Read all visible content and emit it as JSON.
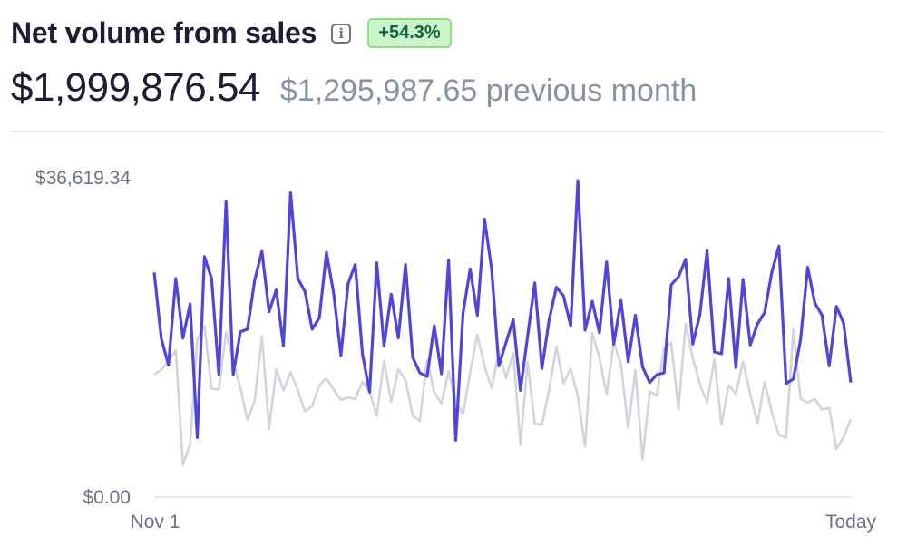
{
  "header": {
    "title": "Net volume from sales",
    "info_icon": "info-icon",
    "change_badge": "+54.3%"
  },
  "summary": {
    "current_value": "$1,999,876.54",
    "previous_text": "$1,295,987.65 previous month"
  },
  "colors": {
    "current": "#5145d9",
    "previous": "#d1d5db",
    "badge_bg": "#cbf4c9",
    "badge_text": "#0e6245"
  },
  "chart_data": {
    "type": "line",
    "title": "",
    "xlabel": "",
    "ylabel": "",
    "ylim": [
      0,
      36619.34
    ],
    "y_tick_labels": [
      "$36,619.34",
      "$0.00"
    ],
    "x_tick_labels": [
      "Nov 1",
      "Today"
    ],
    "grid": false,
    "legend": "none",
    "series": [
      {
        "key": "current",
        "values": [
          25700,
          18100,
          15100,
          25000,
          18200,
          22100,
          6800,
          27500,
          25000,
          14000,
          33800,
          14000,
          18900,
          19200,
          24800,
          28100,
          21200,
          23700,
          17300,
          34800,
          25000,
          23500,
          19200,
          20500,
          28000,
          23300,
          16200,
          24400,
          26600,
          16400,
          12000,
          26800,
          17300,
          23200,
          18200,
          26600,
          16000,
          14200,
          13800,
          19600,
          14100,
          27100,
          6500,
          21000,
          26100,
          20800,
          31800,
          26000,
          15000,
          17700,
          20300,
          12200,
          18400,
          24500,
          14700,
          20300,
          24000,
          23000,
          19600,
          36200,
          19100,
          22400,
          18800,
          26900,
          17500,
          22500,
          15500,
          20800,
          14900,
          13100,
          14000,
          14200,
          24300,
          25200,
          27200,
          17500,
          20900,
          28200,
          16600,
          16400,
          25000,
          14800,
          24900,
          17400,
          19800,
          21100,
          25700,
          28700,
          13000,
          13500,
          18000,
          26300,
          22200,
          20800,
          15000,
          21800,
          19900,
          13100
        ],
        "curve_note": "not shown"
      },
      {
        "key": "previous",
        "values": [
          14000,
          14600,
          15500,
          16800,
          3700,
          6000,
          18100,
          19600,
          12400,
          12300,
          18900,
          15500,
          12500,
          8800,
          11000,
          18400,
          7800,
          14600,
          12200,
          14300,
          12200,
          9800,
          10400,
          12800,
          13600,
          12300,
          11100,
          11400,
          11200,
          13200,
          12100,
          9300,
          15600,
          10900,
          14600,
          13400,
          9300,
          8700,
          15700,
          12000,
          10700,
          14400,
          10900,
          9500,
          14300,
          18600,
          14900,
          12500,
          16700,
          13600,
          16500,
          6000,
          15400,
          8400,
          8300,
          12300,
          17200,
          13000,
          14700,
          11500,
          5800,
          18800,
          15900,
          11800,
          17700,
          15200,
          7900,
          14500,
          4300,
          12100,
          11600,
          17100,
          17600,
          10000,
          19800,
          15900,
          12900,
          10800,
          15800,
          8300,
          12800,
          11800,
          15500,
          11800,
          8400,
          13200,
          9700,
          7100,
          6800,
          19200,
          11300,
          10800,
          11200,
          10000,
          10200,
          5500,
          6900,
          8900
        ]
      }
    ]
  }
}
